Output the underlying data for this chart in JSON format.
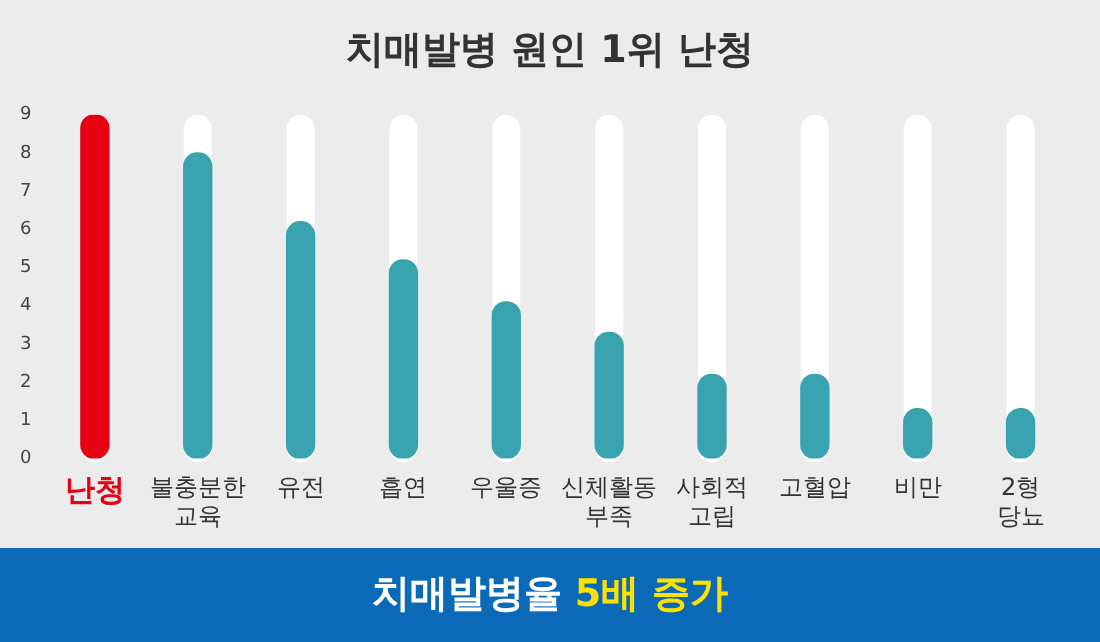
{
  "chart_data": {
    "type": "bar",
    "title": "치매발병 원인 1위 난청",
    "categories": [
      "난청",
      "불충분한 교육",
      "유전",
      "흡연",
      "우울증",
      "신체활동 부족",
      "사회적 고립",
      "고혈압",
      "비만",
      "2형 당뇨"
    ],
    "values": [
      9,
      8,
      6.2,
      5.2,
      4.1,
      3.3,
      2.2,
      2.2,
      1.3,
      1.3
    ],
    "colors": [
      "#e60012",
      "#3aa3b0",
      "#3aa3b0",
      "#3aa3b0",
      "#3aa3b0",
      "#3aa3b0",
      "#3aa3b0",
      "#3aa3b0",
      "#3aa3b0",
      "#3aa3b0"
    ],
    "ylim": [
      0,
      9
    ],
    "yticks": [
      0,
      1,
      2,
      3,
      4,
      5,
      6,
      7,
      8,
      9
    ],
    "grid": false,
    "legend": false,
    "annotations": [
      "치매발병율",
      "5배 증가"
    ]
  }
}
